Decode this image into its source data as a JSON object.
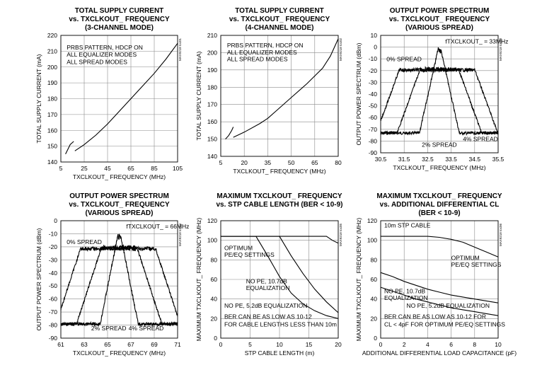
{
  "chart_data": [
    {
      "type": "line",
      "title": [
        "TOTAL SUPPLY CURRENT",
        "vs. TXCLKOUT_ FREQUENCY",
        "(3-CHANNEL MODE)"
      ],
      "xlabel": "TXCLKOUT_ FREQUENCY (MHz)",
      "ylabel": "TOTAL SUPPLY CURRENT (mA)",
      "code": "MAX9218 toc01",
      "xlim": [
        5,
        105
      ],
      "ylim": [
        140,
        220
      ],
      "xticks": [
        "5",
        "25",
        "45",
        "65",
        "85",
        "105"
      ],
      "yticks": [
        "140",
        "150",
        "160",
        "170",
        "180",
        "190",
        "200",
        "210",
        "220"
      ],
      "annotations": [
        {
          "text": "PRBS PATTERN, HDCP ON",
          "x": 10,
          "y": 211
        },
        {
          "text": "ALL EQUALIZER MODES",
          "x": 10,
          "y": 206.5
        },
        {
          "text": "ALL SPREAD MODES",
          "x": 10,
          "y": 202
        }
      ],
      "series": [
        {
          "values": [
            [
              9,
              145
            ],
            [
              11,
              148
            ],
            [
              13,
              151
            ],
            [
              16,
              153
            ]
          ]
        },
        {
          "values": [
            [
              17,
              147
            ],
            [
              25,
              151
            ],
            [
              35,
              157
            ],
            [
              45,
              164
            ],
            [
              55,
              172
            ],
            [
              65,
              180
            ],
            [
              75,
              188
            ],
            [
              85,
              196
            ],
            [
              95,
              205
            ],
            [
              105,
              215
            ]
          ]
        }
      ]
    },
    {
      "type": "line",
      "title": [
        "TOTAL SUPPLY CURRENT",
        "vs. TXCLKOUT_ FREQUENCY",
        "(4-CHANNEL MODE)"
      ],
      "xlabel": "TXCLKOUT_ FREQUENCY (MHz)",
      "ylabel": "TOTAL SUPPLY CURRENT (mA)",
      "code": "MAX9218 toc02",
      "xlim": [
        5,
        80
      ],
      "ylim": [
        140,
        210
      ],
      "xticks": [
        "5",
        "20",
        "35",
        "50",
        "65",
        "80"
      ],
      "yticks": [
        "140",
        "150",
        "160",
        "170",
        "180",
        "190",
        "200",
        "210"
      ],
      "annotations": [
        {
          "text": "PRBS PATTERN, HDCP ON",
          "x": 9,
          "y": 203
        },
        {
          "text": "ALL EQUALIZER MODES",
          "x": 9,
          "y": 199
        },
        {
          "text": "ALL SPREAD MODES",
          "x": 9,
          "y": 195
        }
      ],
      "series": [
        {
          "values": [
            [
              8,
              150
            ],
            [
              10,
              152
            ],
            [
              12,
              155
            ],
            [
              13,
              157
            ]
          ]
        },
        {
          "values": [
            [
              13,
              151
            ],
            [
              20,
              154
            ],
            [
              30,
              159
            ],
            [
              35,
              162
            ],
            [
              40,
              166
            ],
            [
              50,
              174
            ],
            [
              60,
              182
            ],
            [
              70,
              191
            ],
            [
              75,
              198
            ],
            [
              80,
              208
            ]
          ]
        }
      ]
    },
    {
      "type": "line",
      "title": [
        "OUTPUT POWER SPECTRUM",
        "vs. TXCLKOUT_ FREQUENCY",
        "(VARIOUS SPREAD)"
      ],
      "xlabel": "TXCLKOUT_ FREQUENCY (MHz)",
      "ylabel": "OUTPUT POWER SPECTRUM (dBm)",
      "code": "MAX9218 toc03",
      "xlim": [
        30.5,
        35.5
      ],
      "ylim": [
        -90,
        10
      ],
      "xticks": [
        "30.5",
        "31.5",
        "32.5",
        "33.5",
        "34.5",
        "35.5"
      ],
      "yticks": [
        "10",
        "0",
        "-10",
        "-20",
        "-30",
        "-40",
        "-50",
        "-60",
        "-70",
        "-80",
        "-90"
      ],
      "annotations": [
        {
          "text": "fTXCLKOUT_ = 33MHz",
          "x": 33.25,
          "y": 3
        },
        {
          "text": "0% SPREAD",
          "x": 30.75,
          "y": -12
        },
        {
          "text": "2% SPREAD",
          "x": 32.25,
          "y": -85
        },
        {
          "text": "4% SPREAD",
          "x": 34.0,
          "y": -80
        }
      ],
      "series": [
        {
          "name": "0% SPREAD",
          "center": 33.0,
          "half_width": 0.05,
          "peak": 0,
          "floor": -72,
          "wobble": 6
        },
        {
          "name": "2% SPREAD",
          "center": 33.0,
          "half_width": 0.8,
          "peak": -17,
          "floor": -72,
          "wobble": 4
        },
        {
          "name": "4% SPREAD",
          "center": 32.9,
          "half_width": 1.6,
          "peak": -18,
          "floor": -73,
          "wobble": 3
        }
      ]
    },
    {
      "type": "line",
      "title": [
        "OUTPUT POWER SPECTRUM",
        "vs. TXCLKOUT_ FREQUENCY",
        "(VARIOUS SPREAD)"
      ],
      "xlabel": "TXCLKOUT_ FREQUENCY (MHz)",
      "ylabel": "OUTPUT POWER SPECTRUM (dBm)",
      "code": "MAX9218 toc04",
      "xlim": [
        61,
        71
      ],
      "ylim": [
        -90,
        0
      ],
      "xticks": [
        "61",
        "63",
        "65",
        "67",
        "69",
        "71"
      ],
      "yticks": [
        "0",
        "-10",
        "-20",
        "-30",
        "-40",
        "-50",
        "-60",
        "-70",
        "-80",
        "-90"
      ],
      "annotations": [
        {
          "text": "fTXCLKOUT_ = 66MHz",
          "x": 66.6,
          "y": -6
        },
        {
          "text": "0% SPREAD",
          "x": 61.5,
          "y": -18
        },
        {
          "text": "2% SPREAD",
          "x": 63.6,
          "y": -84
        },
        {
          "text": "4% SPREAD",
          "x": 66.8,
          "y": -84
        }
      ],
      "series": [
        {
          "name": "0% SPREAD",
          "center": 66.0,
          "half_width": 0.12,
          "peak": -10,
          "floor": -78,
          "wobble": 5
        },
        {
          "name": "2% SPREAD",
          "center": 66.0,
          "half_width": 1.5,
          "peak": -19,
          "floor": -78,
          "wobble": 3
        },
        {
          "name": "4% SPREAD",
          "center": 65.9,
          "half_width": 3.2,
          "peak": -20,
          "floor": -78,
          "wobble": 3
        }
      ]
    },
    {
      "type": "line",
      "title": [
        "MAXIMUM TXCLKOUT_ FREQUENCY",
        "vs. STP CABLE LENGTH (BER < 10-9)"
      ],
      "xlabel": "STP CABLE LENGTH (m)",
      "ylabel": "MAXIMUM TXCLKOUT_ FREQUENCY (MHz)",
      "code": "MAX9218 toc05",
      "xlim": [
        0,
        20
      ],
      "ylim": [
        0,
        120
      ],
      "xticks": [
        "0",
        "5",
        "10",
        "15",
        "20"
      ],
      "yticks": [
        "0",
        "20",
        "40",
        "60",
        "80",
        "100",
        "120"
      ],
      "annotations": [
        {
          "text": "OPTIMUM",
          "x": 0.6,
          "y": 90
        },
        {
          "text": "PE/EQ SETTINGS",
          "x": 0.6,
          "y": 83
        },
        {
          "text": "NO PE, 10.7dB",
          "x": 4.3,
          "y": 56
        },
        {
          "text": "EQUALIZATION",
          "x": 4.3,
          "y": 49
        },
        {
          "text": "NO PE, 5.2dB EQUALIZATION",
          "x": 0.6,
          "y": 31
        },
        {
          "text": "BER CAN BE AS LOW AS 10-12",
          "x": 0.6,
          "y": 20
        },
        {
          "text": "FOR CABLE LENGTHS LESS THAN 10m",
          "x": 0.6,
          "y": 12
        }
      ],
      "series": [
        {
          "values": [
            [
              0,
              104
            ],
            [
              18,
              104
            ],
            [
              19,
              100
            ],
            [
              20,
              97
            ]
          ]
        },
        {
          "values": [
            [
              0,
              104
            ],
            [
              10,
              104
            ],
            [
              12,
              84
            ],
            [
              14,
              66
            ],
            [
              16,
              50
            ],
            [
              18,
              37
            ],
            [
              20,
              26
            ]
          ]
        },
        {
          "values": [
            [
              0,
              104
            ],
            [
              6,
              104
            ],
            [
              8,
              84
            ],
            [
              10,
              63
            ],
            [
              12,
              46
            ],
            [
              14,
              35
            ],
            [
              16,
              28
            ],
            [
              18,
              23
            ],
            [
              20,
              20
            ]
          ]
        }
      ]
    },
    {
      "type": "line",
      "title": [
        "MAXIMUM TXCLKOUT_ FREQUENCY",
        "vs. ADDITIONAL DIFFERENTIAL CL",
        "(BER < 10-9)"
      ],
      "xlabel": "ADDITIONAL DIFFERENTIAL LOAD CAPACITANCE (pF)",
      "ylabel": "MAXIMUM TXCLKOUT_ FREQUENCY (MHz)",
      "code": "MAX9218 toc06",
      "xlim": [
        0,
        10
      ],
      "ylim": [
        0,
        120
      ],
      "xticks": [
        "0",
        "2",
        "4",
        "6",
        "8",
        "10"
      ],
      "yticks": [
        "0",
        "20",
        "40",
        "60",
        "80",
        "100",
        "120"
      ],
      "annotations": [
        {
          "text": "10m STP CABLE",
          "x": 0.3,
          "y": 113
        },
        {
          "text": "OPTIMUM",
          "x": 6.0,
          "y": 80
        },
        {
          "text": "PE/EQ SETTINGS",
          "x": 6.0,
          "y": 73
        },
        {
          "text": "NO PE, 10.7dB",
          "x": 0.3,
          "y": 46
        },
        {
          "text": "EQUALIZATION",
          "x": 0.3,
          "y": 39
        },
        {
          "text": "NO PE, 5.2dB EQUALIZATION",
          "x": 2.2,
          "y": 31
        },
        {
          "text": "BER CAN BE AS LOW AS 10-12 FOR",
          "x": 0.3,
          "y": 20
        },
        {
          "text": "CL < 4pF FOR OPTIMUM PE/EQ SETTINGS",
          "x": 0.3,
          "y": 12
        }
      ],
      "series": [
        {
          "values": [
            [
              0,
              104
            ],
            [
              2,
              104
            ],
            [
              4,
              104
            ],
            [
              5,
              103
            ],
            [
              6,
              101
            ],
            [
              7,
              98
            ],
            [
              8,
              93
            ],
            [
              9,
              88
            ],
            [
              10,
              83
            ]
          ]
        },
        {
          "values": [
            [
              0,
              67
            ],
            [
              1,
              63
            ],
            [
              2,
              58
            ],
            [
              3,
              54
            ],
            [
              4,
              50
            ],
            [
              5,
              47
            ],
            [
              6,
              44
            ],
            [
              7,
              42
            ],
            [
              8,
              40
            ],
            [
              9,
              38
            ],
            [
              10,
              36
            ]
          ]
        },
        {
          "values": [
            [
              0,
              52
            ],
            [
              1,
              48
            ],
            [
              2,
              44
            ],
            [
              3,
              40
            ],
            [
              4,
              37
            ],
            [
              5,
              34
            ],
            [
              6,
              31
            ],
            [
              7,
              29
            ],
            [
              8,
              27
            ],
            [
              9,
              25
            ],
            [
              10,
              23
            ]
          ]
        }
      ]
    }
  ]
}
